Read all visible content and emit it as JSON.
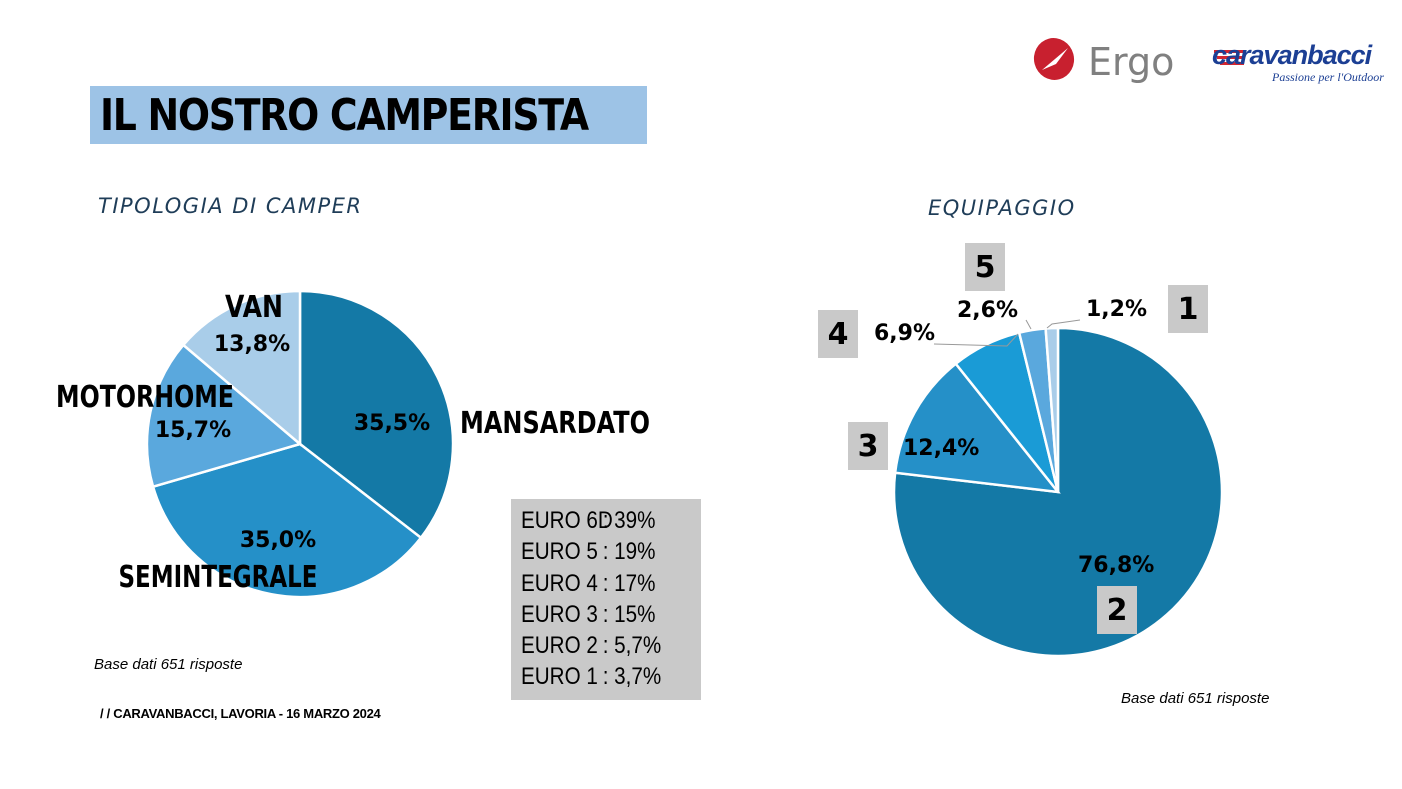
{
  "header": {
    "title": "IL NOSTRO CAMPERISTA",
    "brand_ergo": "Ergo",
    "brand_caravanbacci": "caravanbacci",
    "brand_tagline": "Passione per l'Outdoor"
  },
  "left": {
    "subtitle": "TIPOLOGIA DI CAMPER",
    "footnote": "Base dati 651 risposte",
    "credit": "/ /  CARAVANBACCI, LAVORIA - 16 MARZO 2024",
    "euro": [
      {
        "label": "EURO 6D",
        "value": ": 39%"
      },
      {
        "label": "EURO 5",
        "value": ": 19%"
      },
      {
        "label": "EURO 4",
        "value": ": 17%"
      },
      {
        "label": "EURO 3",
        "value": ": 15%"
      },
      {
        "label": "EURO 2",
        "value": ": 5,7%"
      },
      {
        "label": "EURO 1",
        "value": ": 3,7%"
      }
    ]
  },
  "right": {
    "subtitle": "EQUIPAGGIO",
    "footnote": "Base dati 651 risposte"
  },
  "colors": {
    "band": "#9dc3e6",
    "dark_blue": "#1479a6",
    "mid_blue": "#2590c8",
    "light_mid_blue": "#5aa8dd",
    "pale_blue": "#a9cde9",
    "bright_blue": "#1a9bd6",
    "gray_box": "#c9c9c9"
  },
  "chart_data": [
    {
      "type": "pie",
      "title": "TIPOLOGIA DI CAMPER",
      "categories": [
        "MANSARDATO",
        "SEMINTEGRALE",
        "MOTORHOME",
        "VAN"
      ],
      "values": [
        35.5,
        35.0,
        15.7,
        13.8
      ],
      "value_labels": [
        "35,5%",
        "35,0%",
        "15,7%",
        "13,8%"
      ],
      "colors": [
        "#1479a6",
        "#2590c8",
        "#5aa8dd",
        "#a9cde9"
      ]
    },
    {
      "type": "pie",
      "title": "EQUIPAGGIO",
      "categories": [
        "2",
        "3",
        "4",
        "5",
        "1"
      ],
      "values": [
        76.8,
        12.4,
        6.9,
        2.6,
        1.2
      ],
      "value_labels": [
        "76,8%",
        "12,4%",
        "6,9%",
        "2,6%",
        "1,2%"
      ],
      "colors": [
        "#1479a6",
        "#2590c8",
        "#1a9bd6",
        "#5aa8dd",
        "#a9cde9"
      ]
    }
  ]
}
